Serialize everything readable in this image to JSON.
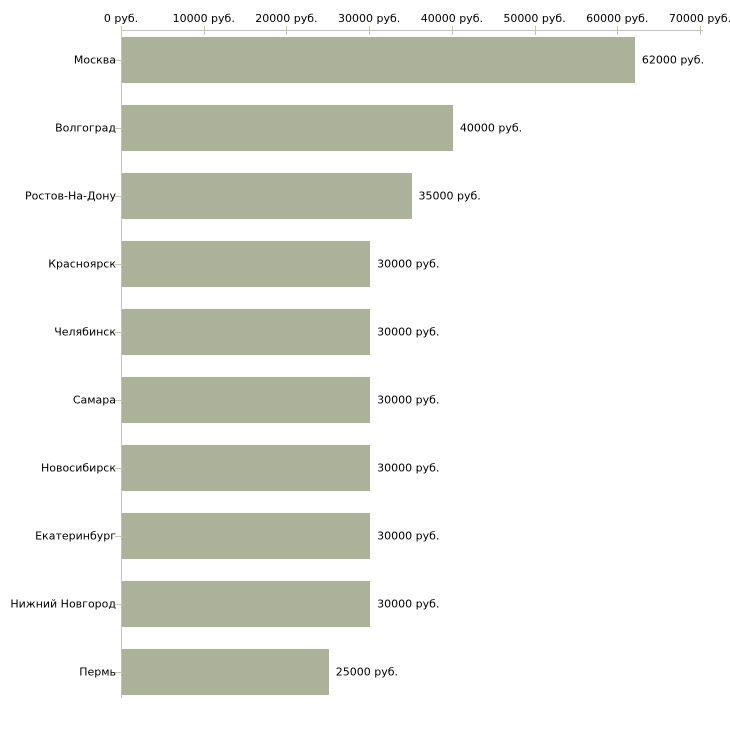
{
  "chart_data": {
    "type": "bar",
    "orientation": "horizontal",
    "title": "",
    "xlabel": "",
    "ylabel": "",
    "grid": false,
    "legend": null,
    "xlim": [
      0,
      70000
    ],
    "x_ticks": [
      0,
      10000,
      20000,
      30000,
      40000,
      50000,
      60000,
      70000
    ],
    "x_tick_labels": [
      "0 руб.",
      "10000 руб.",
      "20000 руб.",
      "30000 руб.",
      "40000 руб.",
      "50000 руб.",
      "60000 руб.",
      "70000 руб."
    ],
    "categories": [
      "Москва",
      "Волгоград",
      "Ростов-На-Дону",
      "Красноярск",
      "Челябинск",
      "Самара",
      "Новосибирск",
      "Екатеринбург",
      "Нижний Новгород",
      "Пермь"
    ],
    "values": [
      62000,
      40000,
      35000,
      30000,
      30000,
      30000,
      30000,
      30000,
      30000,
      25000
    ],
    "value_labels": [
      "62000 руб.",
      "40000 руб.",
      "35000 руб.",
      "30000 руб.",
      "30000 руб.",
      "30000 руб.",
      "30000 руб.",
      "30000 руб.",
      "30000 руб.",
      "25000 руб."
    ],
    "colors": {
      "bar": "#abb299",
      "axis_line": "#c3c3c3",
      "tick": "#c8c8a0",
      "text": "#000000",
      "background": "#ffffff"
    }
  }
}
